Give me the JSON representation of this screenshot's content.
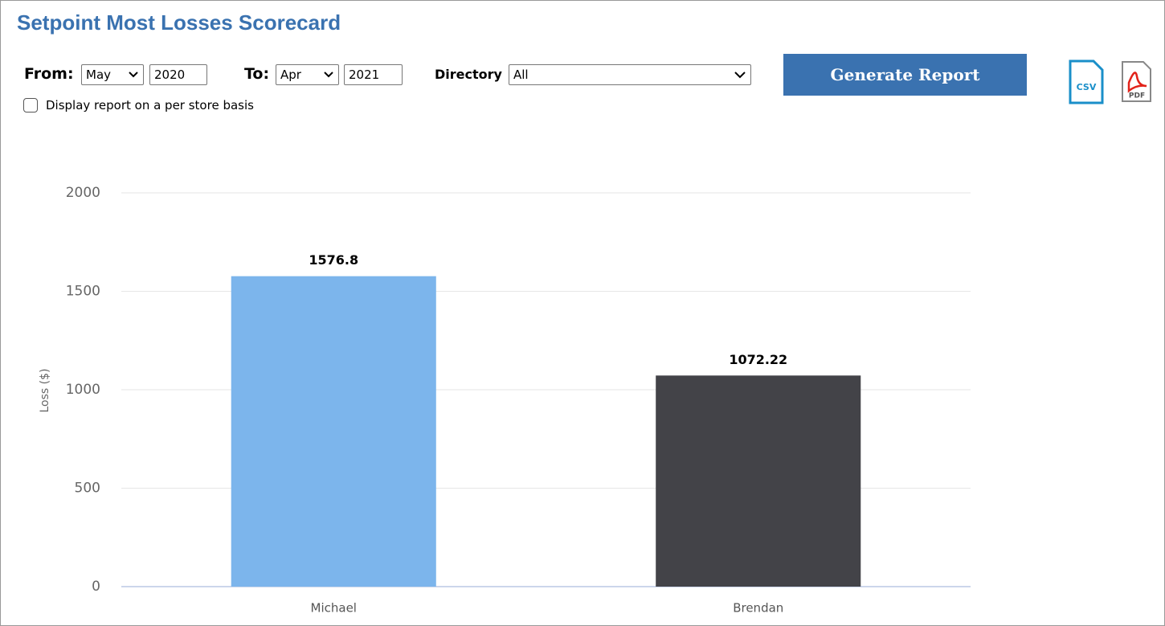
{
  "header": {
    "title": "Setpoint Most Losses Scorecard"
  },
  "form": {
    "from_label": "From:",
    "from_month": "May",
    "from_year": "2020",
    "to_label": "To:",
    "to_month": "Apr",
    "to_year": "2021",
    "directory_label": "Directory",
    "directory_value": "All",
    "button": "Generate Report",
    "checkbox_label": "Display report on a per store basis",
    "csv": "CSV",
    "pdf": "PDF"
  },
  "chart_data": {
    "type": "bar",
    "y_label": "Loss ($)",
    "categories": [
      "Michael",
      "Brendan"
    ],
    "values": [
      1576.8,
      1072.22
    ],
    "colors": [
      "#7cb5ec",
      "#434348"
    ],
    "ylim": [
      0,
      2000
    ],
    "yticks": [
      0,
      500,
      1000,
      1500,
      2000
    ],
    "grid": true
  }
}
